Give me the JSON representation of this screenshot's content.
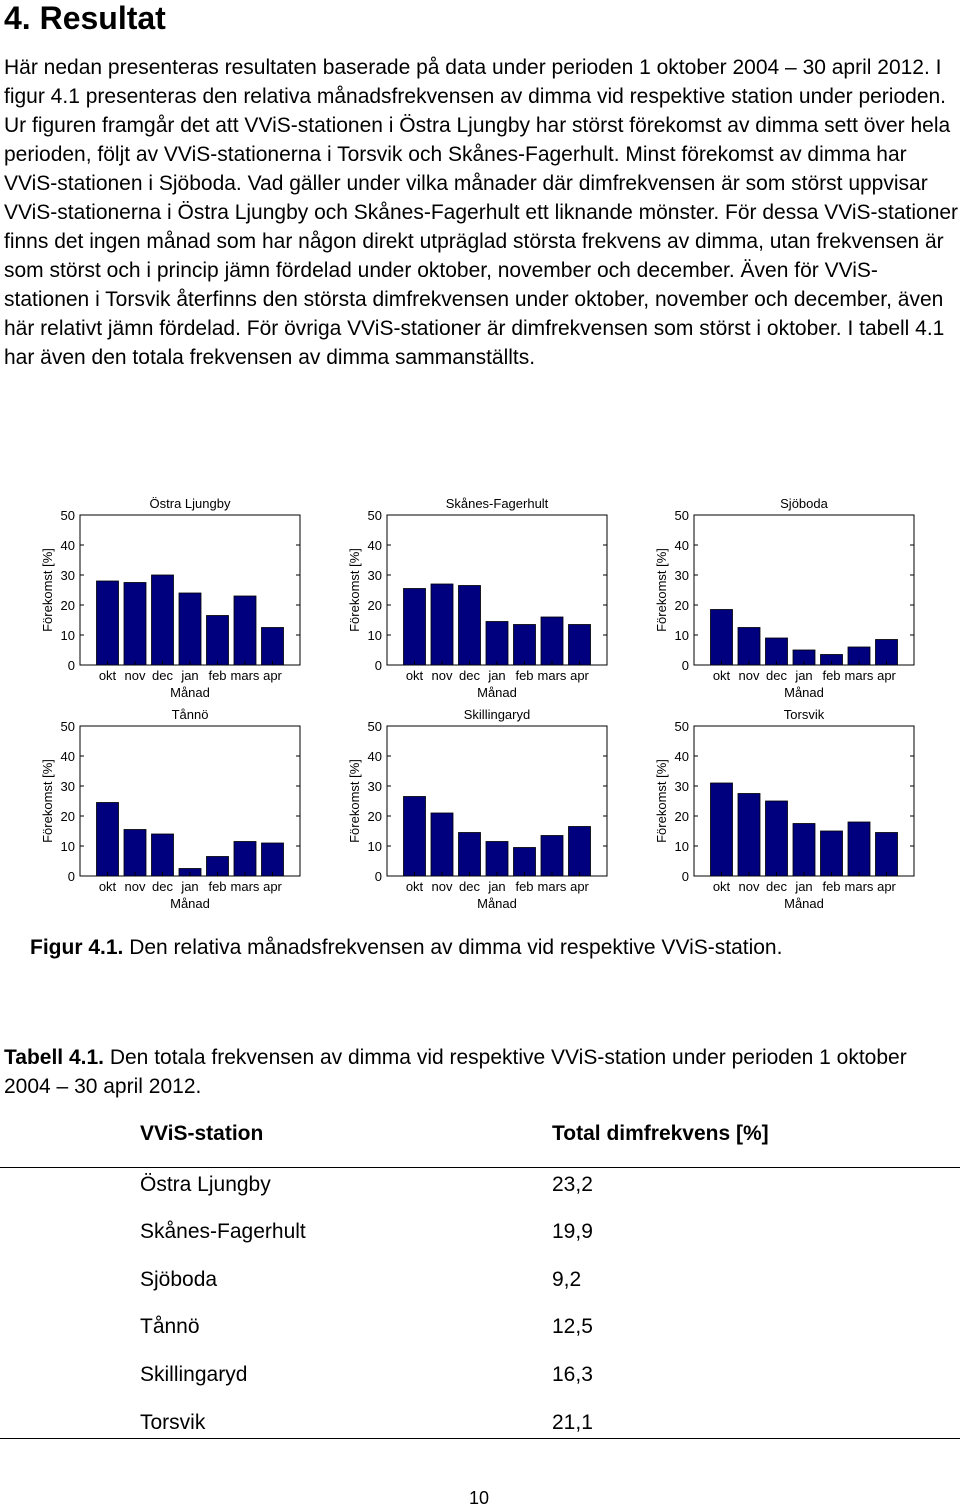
{
  "section_title": "4. Resultat",
  "paragraph": "Här nedan presenteras resultaten baserade på data under perioden 1 oktober 2004 – 30 april 2012. I figur 4.1 presenteras den relativa månadsfrekvensen av dimma vid respektive station under perioden. Ur figuren framgår det att VViS-stationen i Östra Ljungby har störst förekomst av dimma sett över hela perioden, följt av VViS-stationerna i Torsvik och Skånes-Fagerhult. Minst förekomst av dimma har VViS-stationen i Sjöboda. Vad gäller under vilka månader där dimfrekvensen är som störst uppvisar VViS-stationerna i Östra Ljungby och Skånes-Fagerhult ett liknande mönster. För dessa VViS-stationer finns det ingen månad som har någon direkt utpräglad största frekvens av dimma, utan frekvensen är som störst och i princip jämn fördelad under oktober, november och december. Även för VViS-stationen i Torsvik återfinns den största dimfrekvensen under oktober, november och december, även här relativt jämn fördelad. För övriga VViS-stationer är dimfrekvensen som störst i oktober. I tabell 4.1 har även den totala frekvensen av dimma sammanställts.",
  "chart_data": [
    {
      "type": "bar",
      "title": "Östra Ljungby",
      "categories": [
        "okt",
        "nov",
        "dec",
        "jan",
        "feb",
        "mars",
        "apr"
      ],
      "values": [
        28,
        27.5,
        30,
        24,
        16.5,
        23,
        12.5
      ],
      "xlabel": "Månad",
      "ylabel": "Förekomst [%]",
      "ylim": [
        0,
        50
      ],
      "yticks": [
        0,
        10,
        20,
        30,
        40,
        50
      ],
      "color": "#00007f"
    },
    {
      "type": "bar",
      "title": "Skånes-Fagerhult",
      "categories": [
        "okt",
        "nov",
        "dec",
        "jan",
        "feb",
        "mars",
        "apr"
      ],
      "values": [
        25.5,
        27,
        26.5,
        14.5,
        13.5,
        16,
        13.5
      ],
      "xlabel": "Månad",
      "ylabel": "Förekomst [%]",
      "ylim": [
        0,
        50
      ],
      "yticks": [
        0,
        10,
        20,
        30,
        40,
        50
      ],
      "color": "#00007f"
    },
    {
      "type": "bar",
      "title": "Sjöboda",
      "categories": [
        "okt",
        "nov",
        "dec",
        "jan",
        "feb",
        "mars",
        "apr"
      ],
      "values": [
        18.5,
        12.5,
        9,
        5,
        3.5,
        6,
        8.5
      ],
      "xlabel": "Månad",
      "ylabel": "Förekomst [%]",
      "ylim": [
        0,
        50
      ],
      "yticks": [
        0,
        10,
        20,
        30,
        40,
        50
      ],
      "color": "#00007f"
    },
    {
      "type": "bar",
      "title": "Tånnö",
      "categories": [
        "okt",
        "nov",
        "dec",
        "jan",
        "feb",
        "mars",
        "apr"
      ],
      "values": [
        24.5,
        15.5,
        14,
        2.5,
        6.5,
        11.5,
        11
      ],
      "xlabel": "Månad",
      "ylabel": "Förekomst [%]",
      "ylim": [
        0,
        50
      ],
      "yticks": [
        0,
        10,
        20,
        30,
        40,
        50
      ],
      "color": "#00007f"
    },
    {
      "type": "bar",
      "title": "Skillingaryd",
      "categories": [
        "okt",
        "nov",
        "dec",
        "jan",
        "feb",
        "mars",
        "apr"
      ],
      "values": [
        26.5,
        21,
        14.5,
        11.5,
        9.5,
        13.5,
        16.5
      ],
      "xlabel": "Månad",
      "ylabel": "Förekomst [%]",
      "ylim": [
        0,
        50
      ],
      "yticks": [
        0,
        10,
        20,
        30,
        40,
        50
      ],
      "color": "#00007f"
    },
    {
      "type": "bar",
      "title": "Torsvik",
      "categories": [
        "okt",
        "nov",
        "dec",
        "jan",
        "feb",
        "mars",
        "apr"
      ],
      "values": [
        31,
        27.5,
        25,
        17.5,
        15,
        18,
        14.5
      ],
      "xlabel": "Månad",
      "ylabel": "Förekomst [%]",
      "ylim": [
        0,
        50
      ],
      "yticks": [
        0,
        10,
        20,
        30,
        40,
        50
      ],
      "color": "#00007f"
    }
  ],
  "figure_caption": {
    "label": "Figur 4.1.",
    "text": " Den relativa månadsfrekvensen av dimma vid respektive VViS-station."
  },
  "table": {
    "caption_label": "Tabell 4.1.",
    "caption_text": " Den totala frekvensen av dimma vid respektive VViS-station under perioden 1 oktober 2004 – 30 april 2012.",
    "headers": [
      "VViS-station",
      "Total dimfrekvens [%]"
    ],
    "rows": [
      [
        "Östra Ljungby",
        "23,2"
      ],
      [
        "Skånes-Fagerhult",
        "19,9"
      ],
      [
        "Sjöboda",
        "9,2"
      ],
      [
        "Tånnö",
        "12,5"
      ],
      [
        "Skillingaryd",
        "16,3"
      ],
      [
        "Torsvik",
        "21,1"
      ]
    ]
  },
  "page_number": "10"
}
